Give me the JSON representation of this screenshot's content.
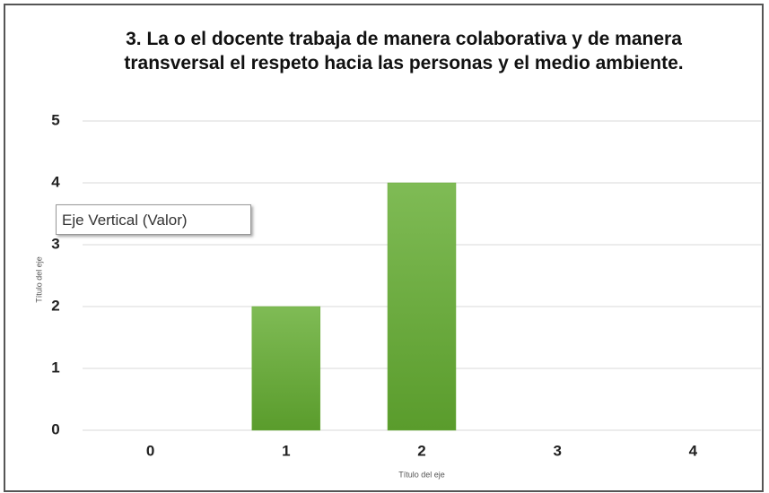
{
  "chart_data": {
    "type": "bar",
    "title": "3. La o el docente trabaja de manera colaborativa y de manera transversal el respeto hacia las personas y el medio ambiente.",
    "categories": [
      "0",
      "1",
      "2",
      "3",
      "4"
    ],
    "values": [
      0,
      2,
      4,
      0,
      0
    ],
    "color": "#6aab3a",
    "ylim": [
      0,
      5
    ],
    "yticks": [
      0,
      1,
      2,
      3,
      4,
      5
    ],
    "grid": true,
    "x_label": "Título del eje",
    "y_label": "Título del eje",
    "annotation": "Eje Vertical (Valor)"
  }
}
